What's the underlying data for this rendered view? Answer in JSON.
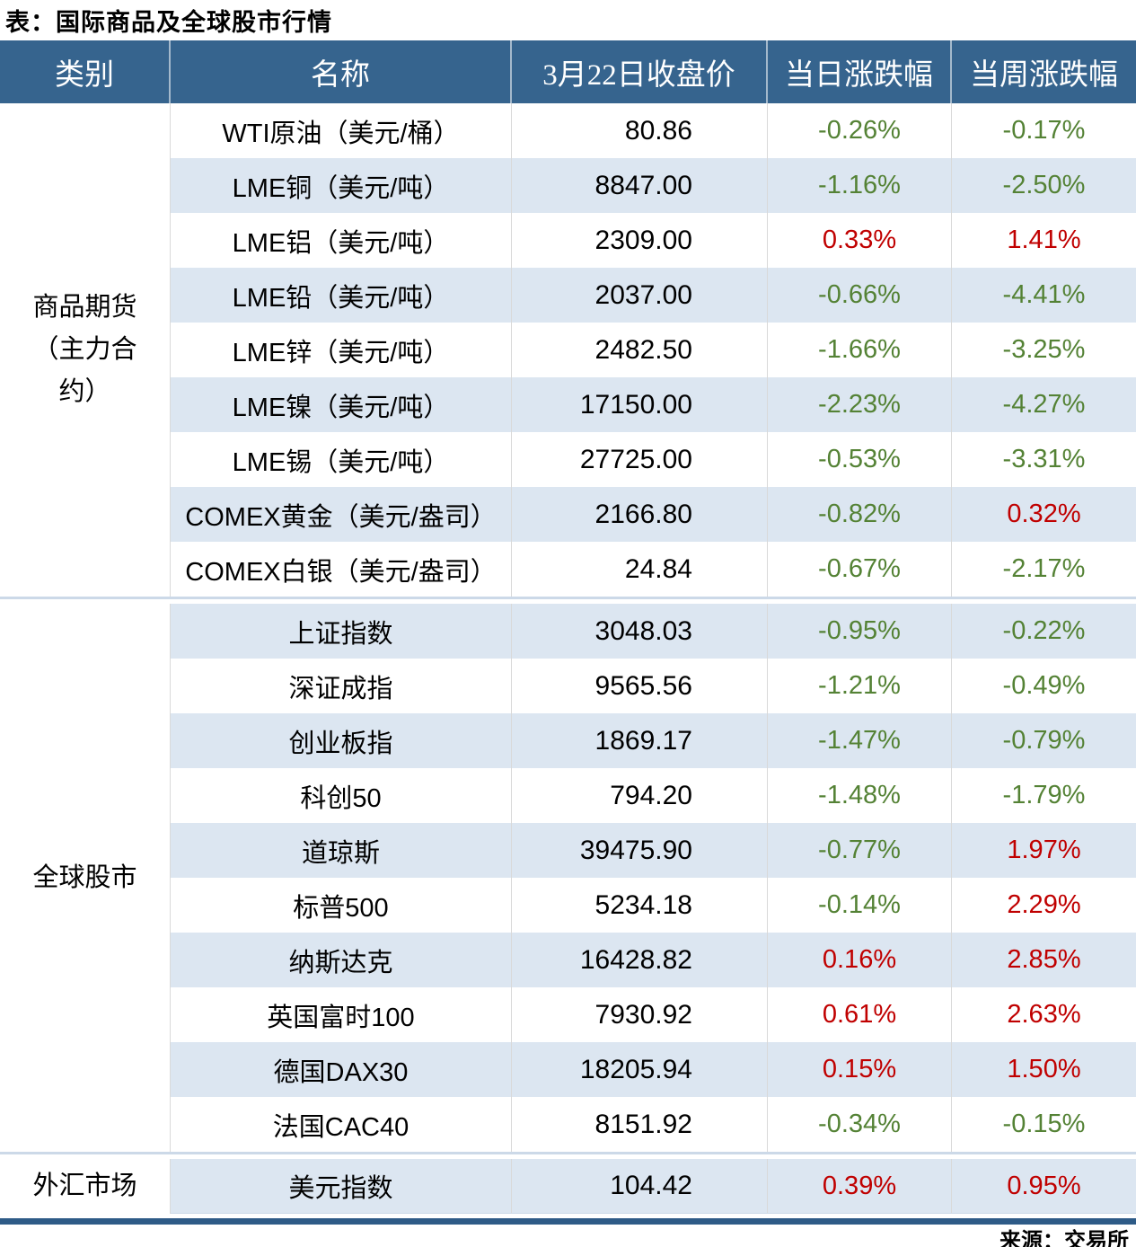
{
  "title": "表：国际商品及全球股市行情",
  "source": "来源：交易所",
  "colors": {
    "header_bg": "#36648E",
    "header_text": "#FFFFFF",
    "row_alt_bg": "#DCE6F1",
    "up": "#C00000",
    "down": "#548235",
    "grid_line": "#D9D9D9",
    "separator_line": "#CCD9E8",
    "bottom_rule": "#2E5B87"
  },
  "table": {
    "columns": [
      "类别",
      "名称",
      "3月22日收盘价",
      "当日涨跌幅",
      "当周涨跌幅"
    ],
    "sections": [
      {
        "category": "商品期货（主力合约）",
        "rows": [
          {
            "name": "WTI原油（美元/桶）",
            "close": "80.86",
            "day": "-0.26%",
            "week": "-0.17%"
          },
          {
            "name": "LME铜（美元/吨）",
            "close": "8847.00",
            "day": "-1.16%",
            "week": "-2.50%"
          },
          {
            "name": "LME铝（美元/吨）",
            "close": "2309.00",
            "day": "0.33%",
            "week": "1.41%"
          },
          {
            "name": "LME铅（美元/吨）",
            "close": "2037.00",
            "day": "-0.66%",
            "week": "-4.41%"
          },
          {
            "name": "LME锌（美元/吨）",
            "close": "2482.50",
            "day": "-1.66%",
            "week": "-3.25%"
          },
          {
            "name": "LME镍（美元/吨）",
            "close": "17150.00",
            "day": "-2.23%",
            "week": "-4.27%"
          },
          {
            "name": "LME锡（美元/吨）",
            "close": "27725.00",
            "day": "-0.53%",
            "week": "-3.31%"
          },
          {
            "name": "COMEX黄金（美元/盎司）",
            "close": "2166.80",
            "day": "-0.82%",
            "week": "0.32%"
          },
          {
            "name": "COMEX白银（美元/盎司）",
            "close": "24.84",
            "day": "-0.67%",
            "week": "-2.17%"
          }
        ]
      },
      {
        "category": "全球股市",
        "rows": [
          {
            "name": "上证指数",
            "close": "3048.03",
            "day": "-0.95%",
            "week": "-0.22%"
          },
          {
            "name": "深证成指",
            "close": "9565.56",
            "day": "-1.21%",
            "week": "-0.49%"
          },
          {
            "name": "创业板指",
            "close": "1869.17",
            "day": "-1.47%",
            "week": "-0.79%"
          },
          {
            "name": "科创50",
            "close": "794.20",
            "day": "-1.48%",
            "week": "-1.79%"
          },
          {
            "name": "道琼斯",
            "close": "39475.90",
            "day": "-0.77%",
            "week": "1.97%"
          },
          {
            "name": "标普500",
            "close": "5234.18",
            "day": "-0.14%",
            "week": "2.29%"
          },
          {
            "name": "纳斯达克",
            "close": "16428.82",
            "day": "0.16%",
            "week": "2.85%"
          },
          {
            "name": "英国富时100",
            "close": "7930.92",
            "day": "0.61%",
            "week": "2.63%"
          },
          {
            "name": "德国DAX30",
            "close": "18205.94",
            "day": "0.15%",
            "week": "1.50%"
          },
          {
            "name": "法国CAC40",
            "close": "8151.92",
            "day": "-0.34%",
            "week": "-0.15%"
          }
        ]
      },
      {
        "category": "外汇市场",
        "rows": [
          {
            "name": "美元指数",
            "close": "104.42",
            "day": "0.39%",
            "week": "0.95%"
          }
        ]
      }
    ]
  }
}
